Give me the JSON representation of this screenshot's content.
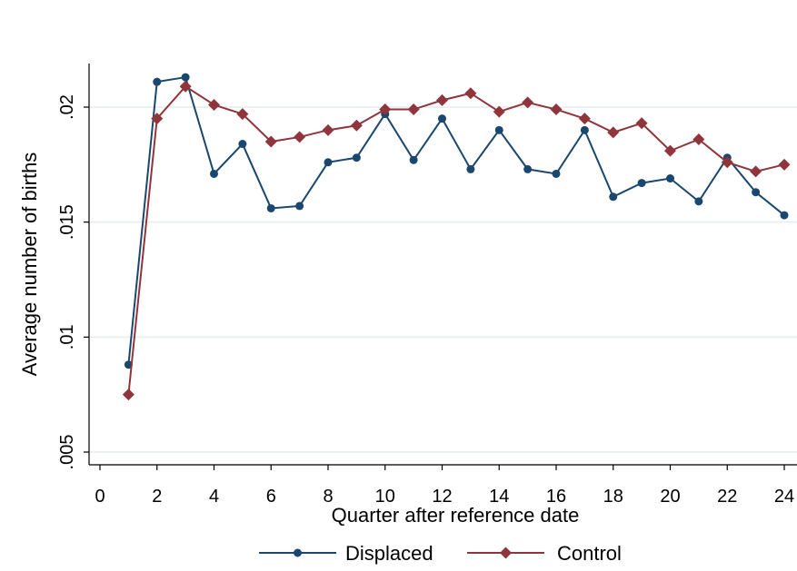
{
  "chart_data": {
    "type": "line",
    "title": "",
    "xlabel": "Quarter after reference date",
    "ylabel": "Average number of births",
    "xlim": [
      0,
      24
    ],
    "ylim": [
      0.005,
      0.02
    ],
    "x_ticks": [
      0,
      2,
      4,
      6,
      8,
      10,
      12,
      14,
      16,
      18,
      20,
      22,
      24
    ],
    "x_tick_labels": [
      "0",
      "2",
      "4",
      "6",
      "8",
      "10",
      "12",
      "14",
      "16",
      "18",
      "20",
      "22",
      "24"
    ],
    "y_ticks": [
      0.005,
      0.01,
      0.015,
      0.02
    ],
    "y_tick_labels": [
      ".005",
      ".01",
      ".015",
      ".02"
    ],
    "grid": "horizontal",
    "legend_position": "bottom",
    "x": [
      1,
      2,
      3,
      4,
      5,
      6,
      7,
      8,
      9,
      10,
      11,
      12,
      13,
      14,
      15,
      16,
      17,
      18,
      19,
      20,
      21,
      22,
      23,
      24
    ],
    "series": [
      {
        "name": "Displaced",
        "color": "#1a476f",
        "marker": "circle",
        "values": [
          0.0088,
          0.0211,
          0.0213,
          0.0171,
          0.0184,
          0.0156,
          0.0157,
          0.0176,
          0.0178,
          0.0197,
          0.0177,
          0.0195,
          0.0173,
          0.019,
          0.0173,
          0.0171,
          0.019,
          0.0161,
          0.0167,
          0.0169,
          0.0159,
          0.0178,
          0.0163,
          0.0153
        ]
      },
      {
        "name": "Control",
        "color": "#90353b",
        "marker": "diamond",
        "values": [
          0.0075,
          0.0195,
          0.0209,
          0.0201,
          0.0197,
          0.0185,
          0.0187,
          0.019,
          0.0192,
          0.0199,
          0.0199,
          0.0203,
          0.0206,
          0.0198,
          0.0202,
          0.0199,
          0.0195,
          0.0189,
          0.0193,
          0.0181,
          0.0186,
          0.0176,
          0.0172,
          0.0175
        ]
      }
    ]
  }
}
